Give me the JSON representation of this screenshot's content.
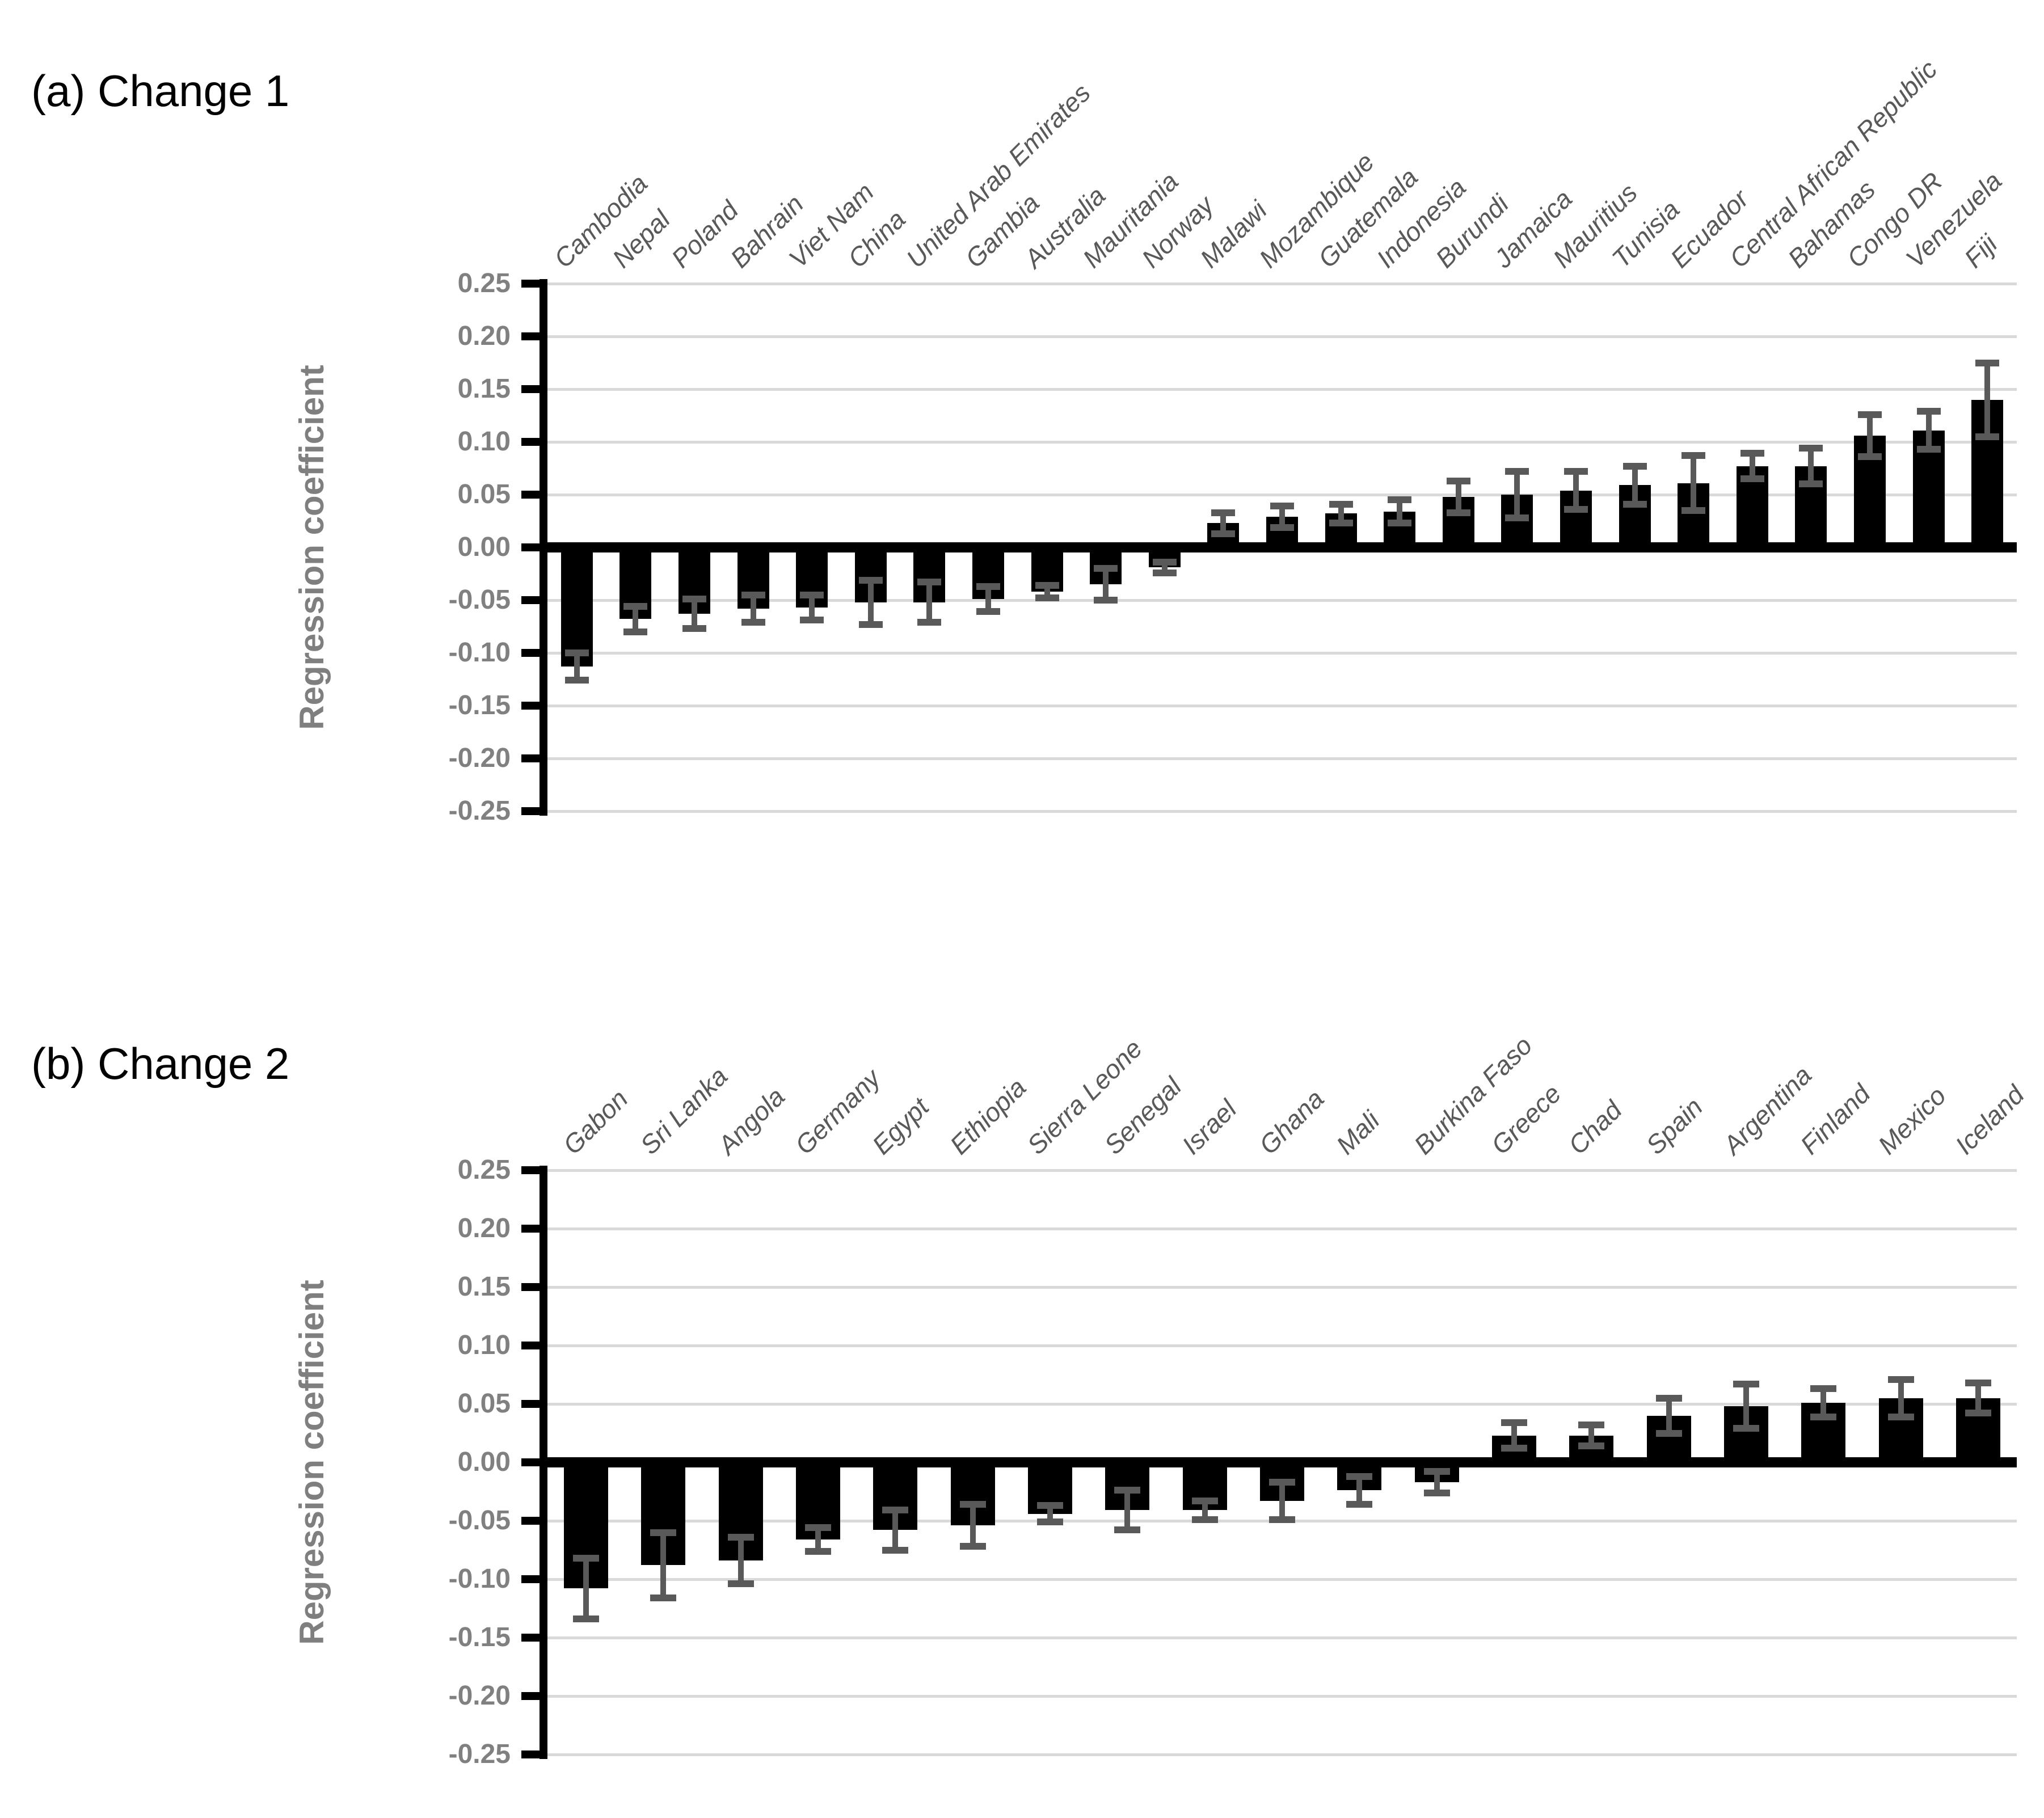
{
  "colors": {
    "bar": "#000000",
    "error_bar": "#595959",
    "gridline": "#d9d9d9",
    "tick_label": "#808080",
    "category_label": "#595959",
    "axis_title": "#7f7f7f",
    "panel_title": "#000000"
  },
  "y_tick_labels": [
    "0.25",
    "0.20",
    "0.15",
    "0.10",
    "0.05",
    "0.00",
    "-0.05",
    "-0.10",
    "-0.15",
    "-0.20",
    "-0.25"
  ],
  "chart_data": [
    {
      "type": "bar",
      "title": "(a) Change 1",
      "ylabel": "Regression coefficient",
      "ylim": [
        -0.25,
        0.25
      ],
      "ytick_step": 0.05,
      "grid": true,
      "legend": "none",
      "error_bars": true,
      "categories": [
        "Cambodia",
        "Nepal",
        "Poland",
        "Bahrain",
        "Viet Nam",
        "China",
        "United Arab Emirates",
        "Gambia",
        "Australia",
        "Mauritania",
        "Norway",
        "Malawi",
        "Mozambique",
        "Guatemala",
        "Indonesia",
        "Burundi",
        "Jamaica",
        "Mauritius",
        "Tunisia",
        "Ecuador",
        "Central African Republic",
        "Bahamas",
        "Congo DR",
        "Venezuela",
        "Fiji"
      ],
      "values": [
        -0.113,
        -0.068,
        -0.063,
        -0.058,
        -0.057,
        -0.052,
        -0.052,
        -0.049,
        -0.042,
        -0.035,
        -0.019,
        0.023,
        0.029,
        0.032,
        0.034,
        0.048,
        0.05,
        0.054,
        0.059,
        0.061,
        0.077,
        0.077,
        0.106,
        0.111,
        0.14
      ],
      "errors": [
        0.013,
        0.012,
        0.014,
        0.013,
        0.012,
        0.021,
        0.019,
        0.012,
        0.006,
        0.015,
        0.005,
        0.01,
        0.01,
        0.009,
        0.011,
        0.015,
        0.022,
        0.018,
        0.018,
        0.026,
        0.012,
        0.017,
        0.02,
        0.018,
        0.035
      ]
    },
    {
      "type": "bar",
      "title": "(b) Change 2",
      "ylabel": "Regression coefficient",
      "ylim": [
        -0.25,
        0.25
      ],
      "ytick_step": 0.05,
      "grid": true,
      "legend": "none",
      "error_bars": true,
      "categories": [
        "Gabon",
        "Sri Lanka",
        "Angola",
        "Germany",
        "Egypt",
        "Ethiopia",
        "Sierra Leone",
        "Senegal",
        "Israel",
        "Ghana",
        "Mali",
        "Burkina Faso",
        "Greece",
        "Chad",
        "Spain",
        "Argentina",
        "Finland",
        "Mexico",
        "Iceland"
      ],
      "values": [
        -0.108,
        -0.088,
        -0.084,
        -0.066,
        -0.058,
        -0.054,
        -0.044,
        -0.041,
        -0.041,
        -0.033,
        -0.024,
        -0.017,
        0.023,
        0.023,
        0.04,
        0.048,
        0.051,
        0.055,
        0.055
      ],
      "errors": [
        0.026,
        0.028,
        0.02,
        0.01,
        0.017,
        0.018,
        0.007,
        0.017,
        0.008,
        0.016,
        0.012,
        0.009,
        0.011,
        0.009,
        0.015,
        0.019,
        0.012,
        0.016,
        0.013
      ]
    }
  ]
}
